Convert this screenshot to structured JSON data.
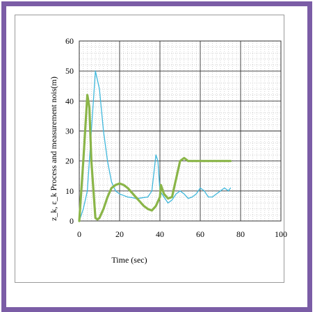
{
  "chart_data": {
    "type": "line",
    "title": "",
    "xlabel": "Time (sec)",
    "ylabel": "z_k, ε_k Process and measurement nois(m)",
    "xlim": [
      0,
      100
    ],
    "ylim": [
      0,
      60
    ],
    "xticks": [
      "0",
      "20",
      "40",
      "60",
      "80",
      "100"
    ],
    "yticks": [
      "0",
      "10",
      "20",
      "30",
      "40",
      "50",
      "60"
    ],
    "grid": true,
    "series": [
      {
        "color": "#3fb8dc",
        "points": [
          [
            0,
            0
          ],
          [
            2,
            4
          ],
          [
            4,
            10
          ],
          [
            6,
            30
          ],
          [
            8,
            50
          ],
          [
            10,
            44
          ],
          [
            12,
            30
          ],
          [
            14,
            20
          ],
          [
            16,
            13
          ],
          [
            18,
            10
          ],
          [
            20,
            9
          ],
          [
            22,
            8.5
          ],
          [
            24,
            8
          ],
          [
            26,
            7.8
          ],
          [
            28,
            7.5
          ],
          [
            30,
            7.6
          ],
          [
            32,
            7.8
          ],
          [
            34,
            8
          ],
          [
            36,
            10
          ],
          [
            37,
            16
          ],
          [
            38,
            22
          ],
          [
            39,
            20
          ],
          [
            40,
            10
          ],
          [
            42,
            8
          ],
          [
            44,
            6
          ],
          [
            46,
            7
          ],
          [
            48,
            9
          ],
          [
            50,
            10
          ],
          [
            52,
            9
          ],
          [
            54,
            7.5
          ],
          [
            56,
            8
          ],
          [
            58,
            9
          ],
          [
            60,
            11
          ],
          [
            62,
            10
          ],
          [
            64,
            8
          ],
          [
            66,
            8
          ],
          [
            68,
            9
          ],
          [
            70,
            10
          ],
          [
            72,
            11
          ],
          [
            74,
            10
          ],
          [
            75,
            11
          ]
        ]
      },
      {
        "color": "#8ab548",
        "points": [
          [
            0,
            0
          ],
          [
            2,
            20
          ],
          [
            4,
            42
          ],
          [
            5,
            38
          ],
          [
            6,
            20
          ],
          [
            8,
            1
          ],
          [
            9,
            0.5
          ],
          [
            10,
            1
          ],
          [
            12,
            4
          ],
          [
            14,
            8
          ],
          [
            16,
            11
          ],
          [
            18,
            12
          ],
          [
            20,
            12.5
          ],
          [
            22,
            12
          ],
          [
            24,
            11
          ],
          [
            26,
            9.5
          ],
          [
            28,
            8
          ],
          [
            30,
            6.5
          ],
          [
            32,
            5
          ],
          [
            34,
            4
          ],
          [
            36,
            3.5
          ],
          [
            38,
            5
          ],
          [
            40,
            8
          ],
          [
            40.5,
            12
          ],
          [
            42,
            9
          ],
          [
            44,
            7.5
          ],
          [
            46,
            8
          ],
          [
            48,
            14
          ],
          [
            50,
            20
          ],
          [
            52,
            21
          ],
          [
            54,
            20
          ],
          [
            60,
            20
          ],
          [
            70,
            20
          ],
          [
            75,
            20
          ]
        ]
      }
    ]
  }
}
